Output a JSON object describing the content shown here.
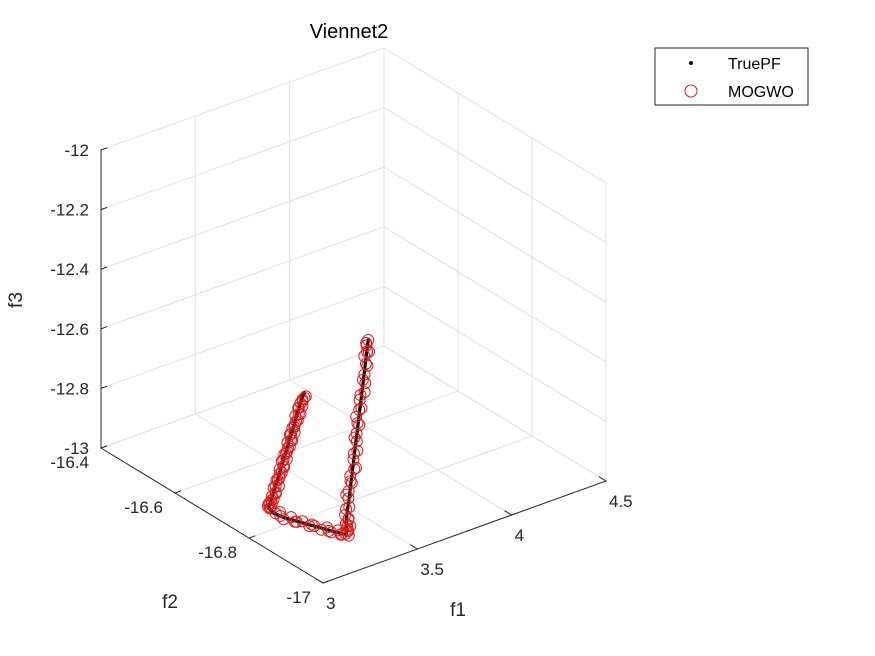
{
  "chart_data": {
    "type": "scatter",
    "projection": "3d",
    "title": "Viennet2",
    "xlabel": "f1",
    "ylabel": "f2",
    "zlabel": "f3",
    "xlim": [
      3,
      4.5
    ],
    "ylim": [
      -17,
      -16.4
    ],
    "zlim": [
      -13,
      -12
    ],
    "xticks": [
      "3",
      "3.5",
      "4",
      "4.5"
    ],
    "yticks": [
      "-17",
      "-16.8",
      "-16.6",
      "-16.4"
    ],
    "zticks": [
      "-13",
      "-12.8",
      "-12.6",
      "-12.4",
      "-12.2",
      "-12"
    ],
    "grid": true,
    "legend": "top-right",
    "series": [
      {
        "name": "TruePF",
        "marker": "point",
        "color": "#000000",
        "points": [
          [
            3.0,
            -16.95,
            -12.4
          ],
          [
            3.01,
            -16.94,
            -12.42
          ],
          [
            3.02,
            -16.93,
            -12.45
          ],
          [
            3.03,
            -16.92,
            -12.48
          ],
          [
            3.04,
            -16.91,
            -12.51
          ],
          [
            3.05,
            -16.9,
            -12.54
          ],
          [
            3.06,
            -16.89,
            -12.57
          ],
          [
            3.07,
            -16.88,
            -12.6
          ],
          [
            3.08,
            -16.87,
            -12.63
          ],
          [
            3.09,
            -16.86,
            -12.66
          ],
          [
            3.1,
            -16.85,
            -12.69
          ],
          [
            3.11,
            -16.84,
            -12.72
          ],
          [
            3.12,
            -16.83,
            -12.75
          ],
          [
            3.13,
            -16.82,
            -12.78
          ],
          [
            3.14,
            -16.81,
            -12.81
          ],
          [
            3.15,
            -16.8,
            -12.84
          ],
          [
            3.16,
            -16.79,
            -12.87
          ],
          [
            3.17,
            -16.78,
            -12.9
          ],
          [
            3.18,
            -16.77,
            -12.93
          ],
          [
            3.19,
            -16.76,
            -12.96
          ],
          [
            3.2,
            -16.75,
            -12.98
          ],
          [
            3.21,
            -16.76,
            -12.995
          ],
          [
            3.23,
            -16.78,
            -13.0
          ],
          [
            3.26,
            -16.81,
            -13.0
          ],
          [
            3.29,
            -16.84,
            -13.0
          ],
          [
            3.32,
            -16.87,
            -13.0
          ],
          [
            3.34,
            -16.89,
            -13.0
          ],
          [
            3.36,
            -16.88,
            -12.99
          ],
          [
            3.38,
            -16.87,
            -12.98
          ],
          [
            3.4,
            -16.86,
            -12.97
          ],
          [
            3.43,
            -16.85,
            -12.94
          ],
          [
            3.46,
            -16.84,
            -12.9
          ],
          [
            3.49,
            -16.83,
            -12.86
          ],
          [
            3.52,
            -16.82,
            -12.82
          ],
          [
            3.55,
            -16.81,
            -12.78
          ],
          [
            3.58,
            -16.8,
            -12.74
          ],
          [
            3.61,
            -16.79,
            -12.7
          ],
          [
            3.64,
            -16.78,
            -12.66
          ],
          [
            3.67,
            -16.77,
            -12.62
          ],
          [
            3.7,
            -16.76,
            -12.58
          ],
          [
            3.73,
            -16.75,
            -12.54
          ]
        ]
      },
      {
        "name": "MOGWO",
        "marker": "circle",
        "color": "#e01b1b",
        "points": [
          [
            3.0,
            -16.95,
            -12.41
          ],
          [
            3.02,
            -16.93,
            -12.46
          ],
          [
            3.04,
            -16.91,
            -12.52
          ],
          [
            3.06,
            -16.89,
            -12.58
          ],
          [
            3.08,
            -16.87,
            -12.64
          ],
          [
            3.1,
            -16.85,
            -12.7
          ],
          [
            3.12,
            -16.83,
            -12.76
          ],
          [
            3.14,
            -16.81,
            -12.82
          ],
          [
            3.16,
            -16.79,
            -12.88
          ],
          [
            3.18,
            -16.77,
            -12.94
          ],
          [
            3.2,
            -16.75,
            -12.98
          ],
          [
            3.23,
            -16.78,
            -13.0
          ],
          [
            3.27,
            -16.82,
            -13.0
          ],
          [
            3.31,
            -16.86,
            -13.0
          ],
          [
            3.34,
            -16.89,
            -13.0
          ],
          [
            3.37,
            -16.88,
            -12.99
          ],
          [
            3.4,
            -16.86,
            -12.97
          ],
          [
            3.45,
            -16.84,
            -12.91
          ],
          [
            3.5,
            -16.83,
            -12.85
          ],
          [
            3.55,
            -16.81,
            -12.78
          ],
          [
            3.6,
            -16.79,
            -12.72
          ],
          [
            3.65,
            -16.78,
            -12.65
          ],
          [
            3.7,
            -16.76,
            -12.58
          ],
          [
            3.73,
            -16.75,
            -12.54
          ]
        ]
      }
    ]
  }
}
